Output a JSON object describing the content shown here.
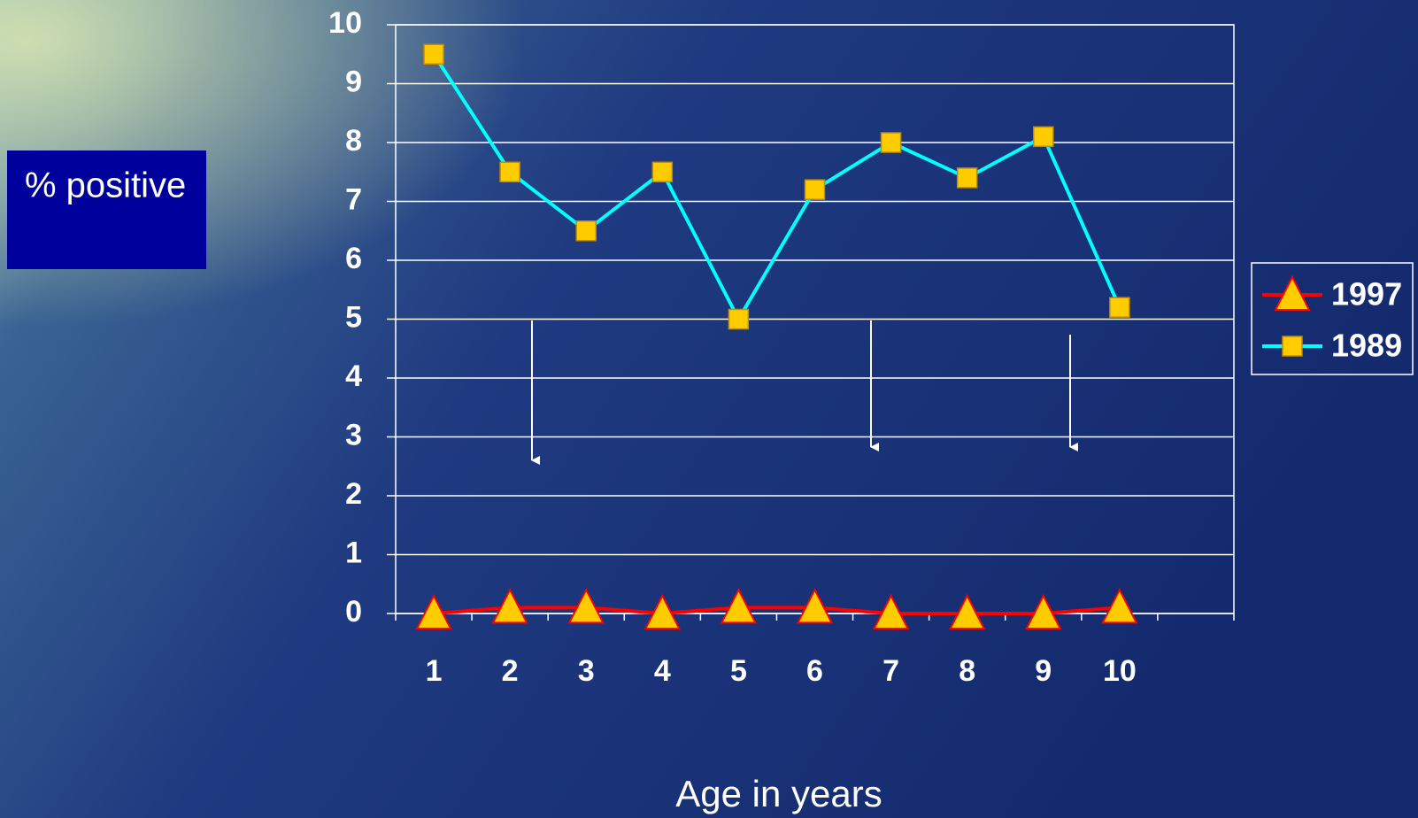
{
  "chart_data": {
    "type": "line",
    "y_label": "% positive",
    "x_label": "Age in years",
    "categories": [
      "1",
      "2",
      "3",
      "4",
      "5",
      "6",
      "7",
      "8",
      "9",
      "10",
      null
    ],
    "series": [
      {
        "name": "1997",
        "color": "#ff0000",
        "marker": "triangle",
        "marker_color": "#ffcc00",
        "values": [
          0,
          0.1,
          0.1,
          0,
          0.1,
          0.1,
          0,
          0,
          0,
          0.1,
          null
        ]
      },
      {
        "name": "1989",
        "color": "#00ffff",
        "marker": "square",
        "marker_color": "#ffcc00",
        "values": [
          9.5,
          7.5,
          6.5,
          7.5,
          5.0,
          7.2,
          8.0,
          7.4,
          8.1,
          5.2,
          null
        ]
      }
    ],
    "ylim": [
      0,
      10
    ],
    "yticks": [
      0,
      1,
      2,
      3,
      4,
      5,
      6,
      7,
      8,
      9,
      10
    ],
    "grid": true,
    "legend": "right"
  }
}
